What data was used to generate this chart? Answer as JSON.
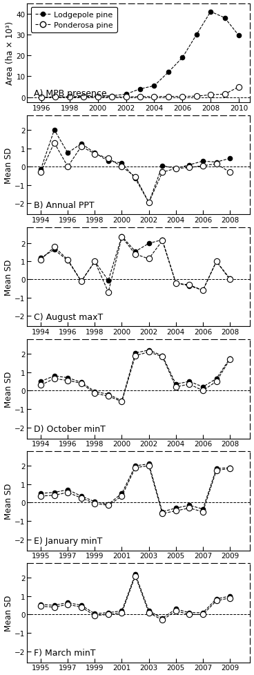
{
  "panel_A": {
    "label": "A) MPB presence",
    "ylabel": "Area (ha × 10³)",
    "xlim": [
      1995.0,
      2010.8
    ],
    "ylim": [
      -2.5,
      45
    ],
    "yticks": [
      0,
      10,
      20,
      30,
      40
    ],
    "xticks": [
      1996,
      1998,
      2000,
      2002,
      2004,
      2006,
      2008,
      2010
    ],
    "lodge_x": [
      1996,
      1997,
      1998,
      1999,
      2000,
      2001,
      2002,
      2003,
      2004,
      2005,
      2006,
      2007,
      2008,
      2009,
      2010
    ],
    "lodge_y": [
      0.1,
      0.1,
      0.2,
      0.3,
      0.5,
      0.7,
      1.5,
      4.0,
      5.5,
      12.0,
      19.0,
      30.0,
      41.0,
      38.0,
      29.5
    ],
    "ponder_x": [
      1996,
      1997,
      1998,
      1999,
      2000,
      2001,
      2002,
      2003,
      2004,
      2005,
      2006,
      2007,
      2008,
      2009,
      2010
    ],
    "ponder_y": [
      0.05,
      0.1,
      0.1,
      0.2,
      0.2,
      0.2,
      0.2,
      0.3,
      0.3,
      0.4,
      0.4,
      0.5,
      1.2,
      1.5,
      5.0
    ]
  },
  "panel_B": {
    "label": "B) Annual PPT",
    "ylabel": "Mean SD",
    "xlim": [
      1993.0,
      2009.5
    ],
    "ylim": [
      -2.6,
      2.8
    ],
    "yticks": [
      -2,
      -1,
      0,
      1,
      2
    ],
    "xticks": [
      1994,
      1996,
      1998,
      2000,
      2002,
      2004,
      2006,
      2008
    ],
    "lodge_x": [
      1994,
      1995,
      1996,
      1997,
      1998,
      1999,
      2000,
      2001,
      2002,
      2003,
      2004,
      2005,
      2006,
      2007,
      2008
    ],
    "lodge_y": [
      -0.15,
      2.0,
      0.75,
      1.25,
      0.75,
      0.3,
      0.2,
      -0.65,
      -1.95,
      0.05,
      -0.1,
      0.1,
      0.3,
      0.25,
      0.45
    ],
    "ponder_x": [
      1994,
      1995,
      1996,
      1997,
      1998,
      1999,
      2000,
      2001,
      2002,
      2003,
      2004,
      2005,
      2006,
      2007,
      2008
    ],
    "ponder_y": [
      -0.3,
      1.3,
      0.0,
      1.1,
      0.7,
      0.45,
      0.0,
      -0.55,
      -1.95,
      -0.3,
      -0.1,
      -0.05,
      0.05,
      0.15,
      -0.3
    ]
  },
  "panel_C": {
    "label": "C) August maxT",
    "ylabel": "Mean SD",
    "xlim": [
      1993.0,
      2009.5
    ],
    "ylim": [
      -2.6,
      2.9
    ],
    "yticks": [
      -2,
      -1,
      0,
      1,
      2
    ],
    "xticks": [
      1994,
      1996,
      1998,
      2000,
      2002,
      2004,
      2006,
      2008
    ],
    "lodge_x": [
      1994,
      1995,
      1996,
      1997,
      1998,
      1999,
      2000,
      2001,
      2002,
      2003,
      2004,
      2005,
      2006,
      2007,
      2008
    ],
    "lodge_y": [
      1.2,
      1.65,
      1.05,
      -0.1,
      1.0,
      -0.05,
      2.4,
      1.55,
      2.0,
      2.2,
      -0.2,
      -0.35,
      -0.6,
      1.0,
      0.05
    ],
    "ponder_x": [
      1994,
      1995,
      1996,
      1997,
      1998,
      1999,
      2000,
      2001,
      2002,
      2003,
      2004,
      2005,
      2006,
      2007,
      2008
    ],
    "ponder_y": [
      1.1,
      1.8,
      1.1,
      -0.1,
      1.0,
      -0.7,
      2.35,
      1.4,
      1.15,
      2.15,
      -0.2,
      -0.3,
      -0.6,
      1.0,
      0.0
    ]
  },
  "panel_D": {
    "label": "D) October minT",
    "ylabel": "Mean SD",
    "xlim": [
      1993.0,
      2009.5
    ],
    "ylim": [
      -2.6,
      2.8
    ],
    "yticks": [
      -2,
      -1,
      0,
      1,
      2
    ],
    "xticks": [
      1994,
      1996,
      1998,
      2000,
      2002,
      2004,
      2006,
      2008
    ],
    "lodge_x": [
      1994,
      1995,
      1996,
      1997,
      1998,
      1999,
      2000,
      2001,
      2002,
      2003,
      2004,
      2005,
      2006,
      2007,
      2008
    ],
    "lodge_y": [
      0.5,
      0.8,
      0.7,
      0.45,
      -0.05,
      -0.2,
      -0.55,
      2.05,
      2.2,
      1.9,
      0.35,
      0.5,
      0.2,
      0.65,
      1.75
    ],
    "ponder_x": [
      1994,
      1995,
      1996,
      1997,
      1998,
      1999,
      2000,
      2001,
      2002,
      2003,
      2004,
      2005,
      2006,
      2007,
      2008
    ],
    "ponder_y": [
      0.3,
      0.65,
      0.55,
      0.4,
      -0.15,
      -0.3,
      -0.6,
      1.9,
      2.1,
      1.85,
      0.2,
      0.35,
      0.0,
      0.5,
      1.7
    ]
  },
  "panel_E": {
    "label": "E) January minT",
    "ylabel": "Mean SD",
    "xlim": [
      1994.0,
      2010.5
    ],
    "ylim": [
      -2.6,
      2.8
    ],
    "yticks": [
      -2,
      -1,
      0,
      1,
      2
    ],
    "xticks": [
      1995,
      1997,
      1999,
      2001,
      2003,
      2005,
      2007,
      2009
    ],
    "lodge_x": [
      1995,
      1996,
      1997,
      1998,
      1999,
      2000,
      2001,
      2002,
      2003,
      2004,
      2005,
      2006,
      2007,
      2008,
      2009
    ],
    "lodge_y": [
      0.5,
      0.55,
      0.7,
      0.35,
      0.05,
      -0.1,
      0.5,
      2.0,
      2.1,
      -0.5,
      -0.3,
      -0.15,
      -0.35,
      1.85,
      1.9
    ],
    "ponder_x": [
      1995,
      1996,
      1997,
      1998,
      1999,
      2000,
      2001,
      2002,
      2003,
      2004,
      2005,
      2006,
      2007,
      2008,
      2009
    ],
    "ponder_y": [
      0.35,
      0.4,
      0.55,
      0.25,
      -0.05,
      -0.15,
      0.35,
      1.9,
      2.0,
      -0.6,
      -0.45,
      -0.3,
      -0.5,
      1.75,
      1.85
    ]
  },
  "panel_F": {
    "label": "F) March minT",
    "ylabel": "Mean SD",
    "xlim": [
      1994.0,
      2010.5
    ],
    "ylim": [
      -2.6,
      2.8
    ],
    "yticks": [
      -2,
      -1,
      0,
      1,
      2
    ],
    "xticks": [
      1995,
      1997,
      1999,
      2001,
      2003,
      2005,
      2007,
      2009
    ],
    "lodge_x": [
      1995,
      1996,
      1997,
      1998,
      1999,
      2000,
      2001,
      2002,
      2003,
      2004,
      2005,
      2006,
      2007,
      2008,
      2009
    ],
    "lodge_y": [
      0.55,
      0.5,
      0.65,
      0.5,
      0.05,
      0.1,
      0.2,
      2.2,
      0.2,
      -0.2,
      0.3,
      0.1,
      0.1,
      0.85,
      1.0
    ],
    "ponder_x": [
      1995,
      1996,
      1997,
      1998,
      1999,
      2000,
      2001,
      2002,
      2003,
      2004,
      2005,
      2006,
      2007,
      2008,
      2009
    ],
    "ponder_y": [
      0.45,
      0.4,
      0.55,
      0.4,
      -0.05,
      0.0,
      0.1,
      2.1,
      0.1,
      -0.3,
      0.2,
      0.0,
      0.0,
      0.75,
      0.9
    ]
  }
}
